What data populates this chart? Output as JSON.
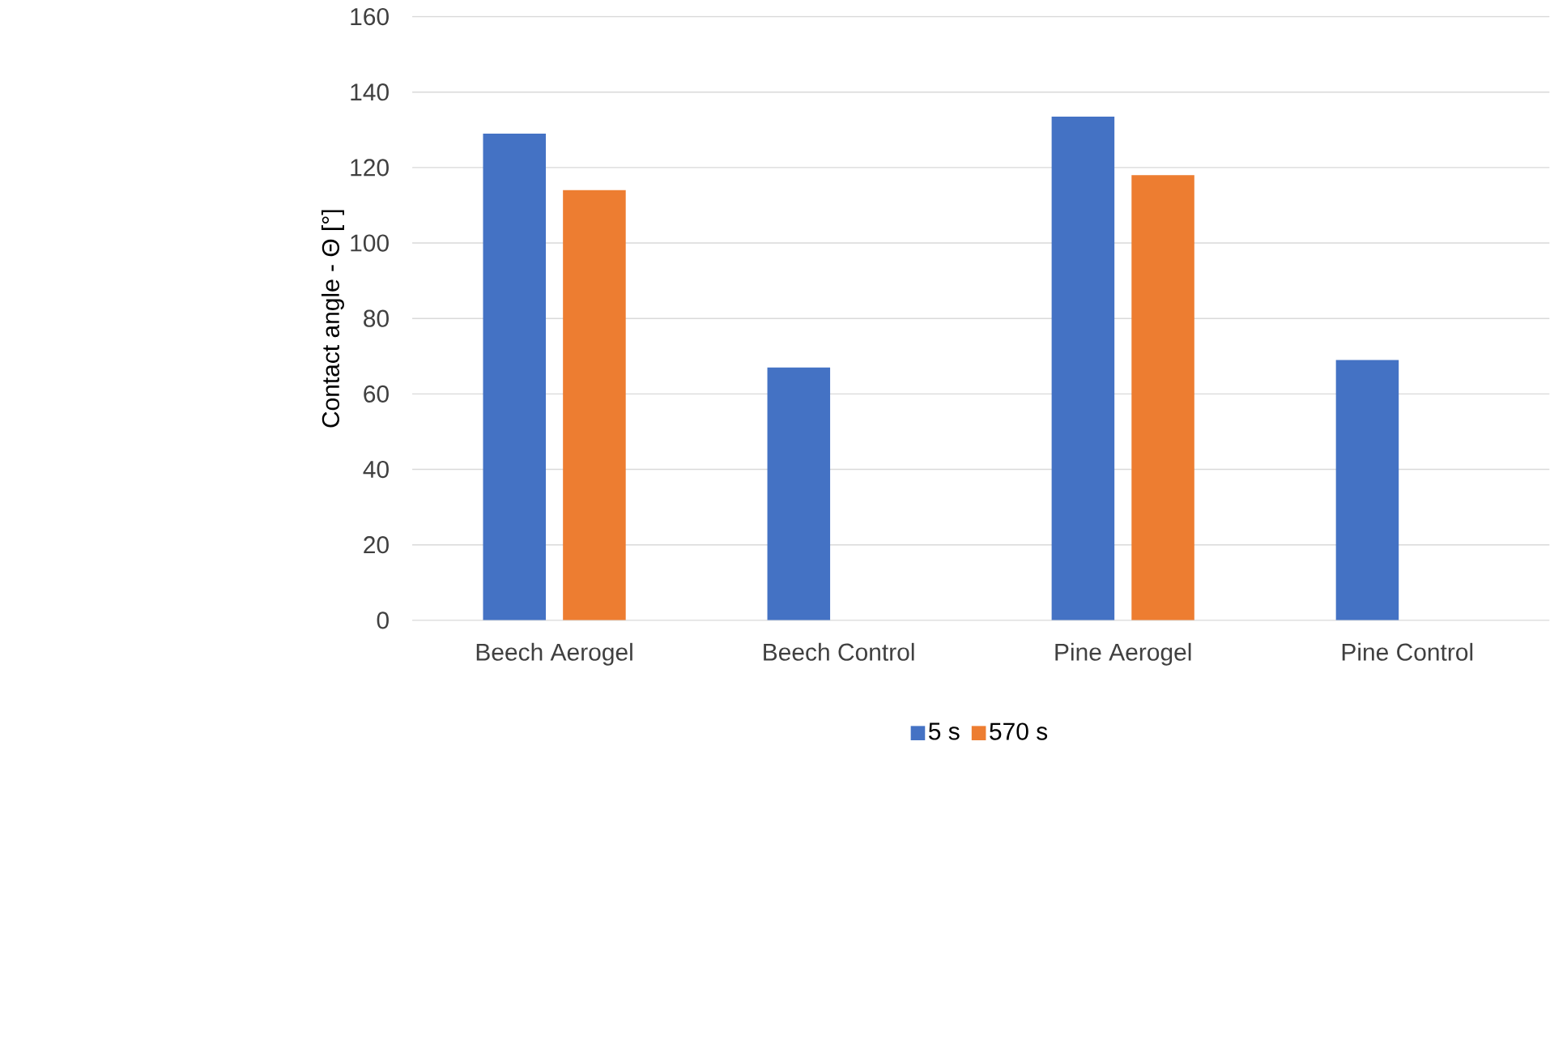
{
  "chart_data": {
    "type": "bar",
    "ylabel": "Contact angle - Θ [°]",
    "categories": [
      "Beech Aerogel",
      "Beech Control",
      "Pine Aerogel",
      "Pine Control"
    ],
    "series": [
      {
        "name": "5 s",
        "color": "#4472c4",
        "values": [
          129,
          67,
          133.5,
          69
        ]
      },
      {
        "name": "570 s",
        "color": "#ed7d31",
        "values": [
          114,
          null,
          118,
          null
        ]
      }
    ],
    "ylim": [
      0,
      160
    ],
    "yticks": [
      0,
      20,
      40,
      60,
      80,
      100,
      120,
      140,
      160
    ],
    "grid": "y",
    "legend": "bottom"
  }
}
